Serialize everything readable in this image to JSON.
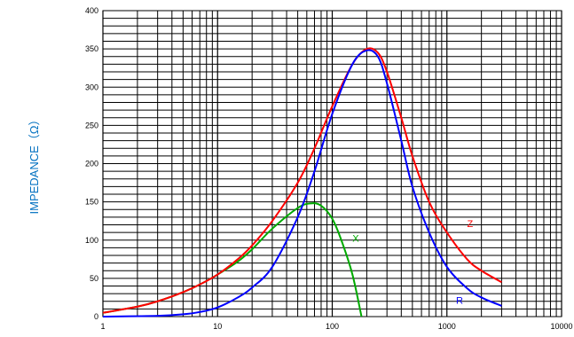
{
  "chart_data": {
    "type": "line",
    "title": "",
    "xlabel": "",
    "ylabel": "IMPEDANCE（Ω）",
    "x_scale": "log",
    "xlim": [
      1,
      10000
    ],
    "ylim": [
      0,
      400
    ],
    "x_tick_labels": [
      "1",
      "10",
      "100",
      "1000",
      "10000"
    ],
    "y_tick_labels": [
      "0",
      "50",
      "100",
      "150",
      "200",
      "250",
      "300",
      "350",
      "400"
    ],
    "grid": true,
    "legend": "none",
    "series": [
      {
        "name": "Z",
        "color": "#ff0000",
        "x": [
          1,
          2,
          3,
          5,
          7,
          10,
          15,
          20,
          30,
          50,
          70,
          100,
          150,
          200,
          250,
          300,
          400,
          500,
          700,
          1000,
          1500,
          2000,
          3000
        ],
        "y": [
          5,
          13,
          20,
          32,
          42,
          55,
          75,
          93,
          125,
          175,
          220,
          275,
          330,
          350,
          345,
          320,
          260,
          210,
          150,
          110,
          75,
          60,
          45
        ]
      },
      {
        "name": "R",
        "color": "#0000ff",
        "x": [
          1,
          3,
          5,
          7,
          10,
          15,
          20,
          30,
          50,
          70,
          100,
          150,
          200,
          250,
          300,
          400,
          500,
          700,
          1000,
          1500,
          2000,
          3000
        ],
        "y": [
          0,
          1,
          3,
          6,
          12,
          25,
          38,
          65,
          130,
          190,
          265,
          330,
          348,
          340,
          305,
          230,
          170,
          110,
          65,
          37,
          25,
          14
        ]
      },
      {
        "name": "X",
        "color": "#00aa00",
        "x": [
          1,
          2,
          3,
          5,
          7,
          10,
          15,
          20,
          30,
          50,
          65,
          80,
          100,
          120,
          150,
          180
        ],
        "y": [
          5,
          13,
          20,
          32,
          42,
          55,
          72,
          88,
          115,
          142,
          148,
          145,
          128,
          100,
          55,
          0
        ]
      }
    ]
  }
}
